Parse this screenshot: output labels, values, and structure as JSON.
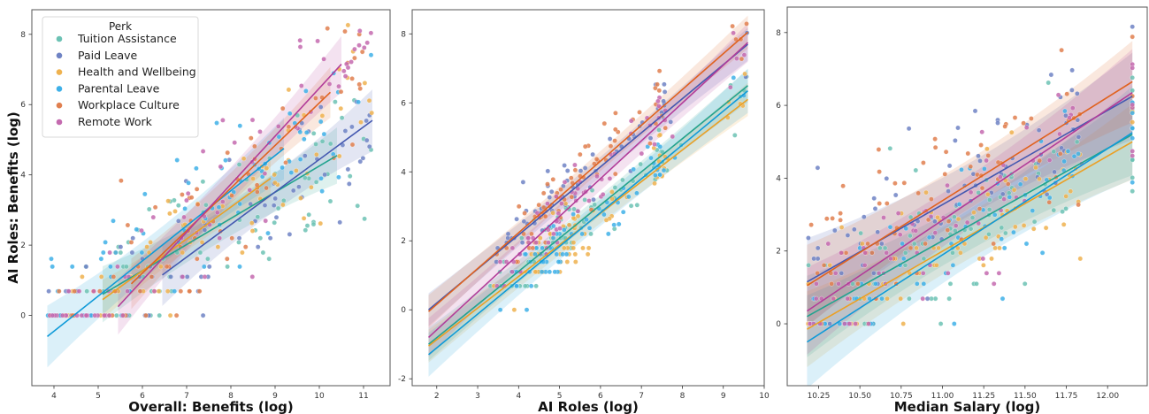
{
  "chart_data": {
    "type": "scatter",
    "legend": {
      "title": "Perk",
      "placement": "top-left of first panel",
      "entries": [
        {
          "name": "Tuition Assistance",
          "color": "#6cc2b4"
        },
        {
          "name": "Paid Leave",
          "color": "#6f83c4"
        },
        {
          "name": "Health and Wellbeing",
          "color": "#efb24f"
        },
        {
          "name": "Parental Leave",
          "color": "#3eb0e8"
        },
        {
          "name": "Workplace Culture",
          "color": "#e07f4f"
        },
        {
          "name": "Remote Work",
          "color": "#c46aaf"
        }
      ]
    },
    "line_colors": {
      "Tuition Assistance": "#22a38f",
      "Paid Leave": "#4458b0",
      "Health and Wellbeing": "#eba025",
      "Parental Leave": "#0f9ad8",
      "Workplace Culture": "#e0621f",
      "Remote Work": "#b23c99"
    },
    "panels": [
      {
        "id": "overall-benefits",
        "xlabel": "Overall: Benefits (log)",
        "ylabel": "AI Roles: Benefits (log)",
        "xlim": [
          3.5,
          11.6
        ],
        "ylim": [
          -2.0,
          8.7
        ],
        "xticks": [
          4,
          5,
          6,
          7,
          8,
          9,
          10,
          11
        ],
        "yticks": [
          0,
          2,
          4,
          6,
          8
        ],
        "grid": false,
        "fits": [
          {
            "series": "Tuition Assistance",
            "x": [
              5.1,
              10.4
            ],
            "y": [
              0.6,
              4.55
            ],
            "ci": 0.5
          },
          {
            "series": "Paid Leave",
            "x": [
              6.45,
              11.2
            ],
            "y": [
              1.15,
              5.55
            ],
            "ci": 0.55
          },
          {
            "series": "Health and Wellbeing",
            "x": [
              5.1,
              8.9
            ],
            "y": [
              0.45,
              3.9
            ],
            "ci": 0.35
          },
          {
            "series": "Parental Leave",
            "x": [
              3.85,
              9.2
            ],
            "y": [
              -0.6,
              4.75
            ],
            "ci": 0.55
          },
          {
            "series": "Workplace Culture",
            "x": [
              5.75,
              10.25
            ],
            "y": [
              0.9,
              6.35
            ],
            "ci": 0.45
          },
          {
            "series": "Remote Work",
            "x": [
              5.45,
              10.5
            ],
            "y": [
              0.25,
              7.15
            ],
            "ci": 0.5
          }
        ],
        "x_range": [
          3.85,
          11.2
        ],
        "y_levels": [
          0,
          0.69,
          1.1,
          1.39,
          1.61,
          1.79,
          1.95,
          2.08,
          2.2
        ]
      },
      {
        "id": "ai-roles",
        "xlabel": "AI Roles (log)",
        "ylabel": "",
        "xlim": [
          1.4,
          10.0
        ],
        "ylim": [
          -2.2,
          8.7
        ],
        "xticks": [
          2,
          3,
          4,
          5,
          6,
          7,
          8,
          9,
          10
        ],
        "yticks": [
          -2,
          0,
          2,
          4,
          6,
          8
        ],
        "grid": false,
        "fits": [
          {
            "series": "Tuition Assistance",
            "x": [
              1.8,
              9.6
            ],
            "y": [
              -1.0,
              6.5
            ],
            "ci": 0.3
          },
          {
            "series": "Paid Leave",
            "x": [
              1.8,
              9.6
            ],
            "y": [
              0.0,
              7.7
            ],
            "ci": 0.3
          },
          {
            "series": "Health and Wellbeing",
            "x": [
              1.8,
              9.6
            ],
            "y": [
              -1.05,
              6.1
            ],
            "ci": 0.3
          },
          {
            "series": "Parental Leave",
            "x": [
              1.8,
              9.6
            ],
            "y": [
              -1.3,
              6.35
            ],
            "ci": 0.4
          },
          {
            "series": "Workplace Culture",
            "x": [
              1.8,
              9.6
            ],
            "y": [
              -0.05,
              8.05
            ],
            "ci": 0.3
          },
          {
            "series": "Remote Work",
            "x": [
              1.8,
              9.6
            ],
            "y": [
              -0.8,
              7.75
            ],
            "ci": 0.35
          }
        ],
        "x_range": [
          1.8,
          9.6
        ],
        "y_levels": [
          0,
          0.69,
          1.1,
          1.39,
          1.61,
          1.79,
          1.95,
          2.08,
          2.2
        ]
      },
      {
        "id": "median-salary",
        "xlabel": "Median Salary (log)",
        "ylabel": "",
        "xlim": [
          10.06,
          12.24
        ],
        "ylim": [
          -1.7,
          8.7
        ],
        "xticks": [
          10.25,
          10.5,
          10.75,
          11.0,
          11.25,
          11.5,
          11.75,
          12.0
        ],
        "xtick_labels": [
          "10.25",
          "10.50",
          "10.75",
          "11.00",
          "11.25",
          "11.50",
          "11.75",
          "12.00"
        ],
        "yticks": [
          0,
          2,
          4,
          6,
          8
        ],
        "grid": false,
        "fits": [
          {
            "series": "Tuition Assistance",
            "x": [
              10.18,
              12.15
            ],
            "y": [
              0.2,
              5.2
            ],
            "ci": 0.7
          },
          {
            "series": "Paid Leave",
            "x": [
              10.18,
              12.15
            ],
            "y": [
              1.15,
              6.25
            ],
            "ci": 0.75
          },
          {
            "series": "Health and Wellbeing",
            "x": [
              10.18,
              12.15
            ],
            "y": [
              -0.15,
              5.0
            ],
            "ci": 0.65
          },
          {
            "series": "Parental Leave",
            "x": [
              10.18,
              12.15
            ],
            "y": [
              -0.5,
              5.25
            ],
            "ci": 0.8
          },
          {
            "series": "Workplace Culture",
            "x": [
              10.18,
              12.15
            ],
            "y": [
              1.05,
              6.65
            ],
            "ci": 0.7
          },
          {
            "series": "Remote Work",
            "x": [
              10.18,
              12.15
            ],
            "y": [
              0.35,
              6.35
            ],
            "ci": 0.75
          }
        ],
        "x_range": [
          10.18,
          12.15
        ],
        "y_levels": [
          0,
          0.69,
          1.1,
          1.39,
          1.61,
          1.79,
          1.95,
          2.08,
          2.2
        ]
      }
    ]
  }
}
